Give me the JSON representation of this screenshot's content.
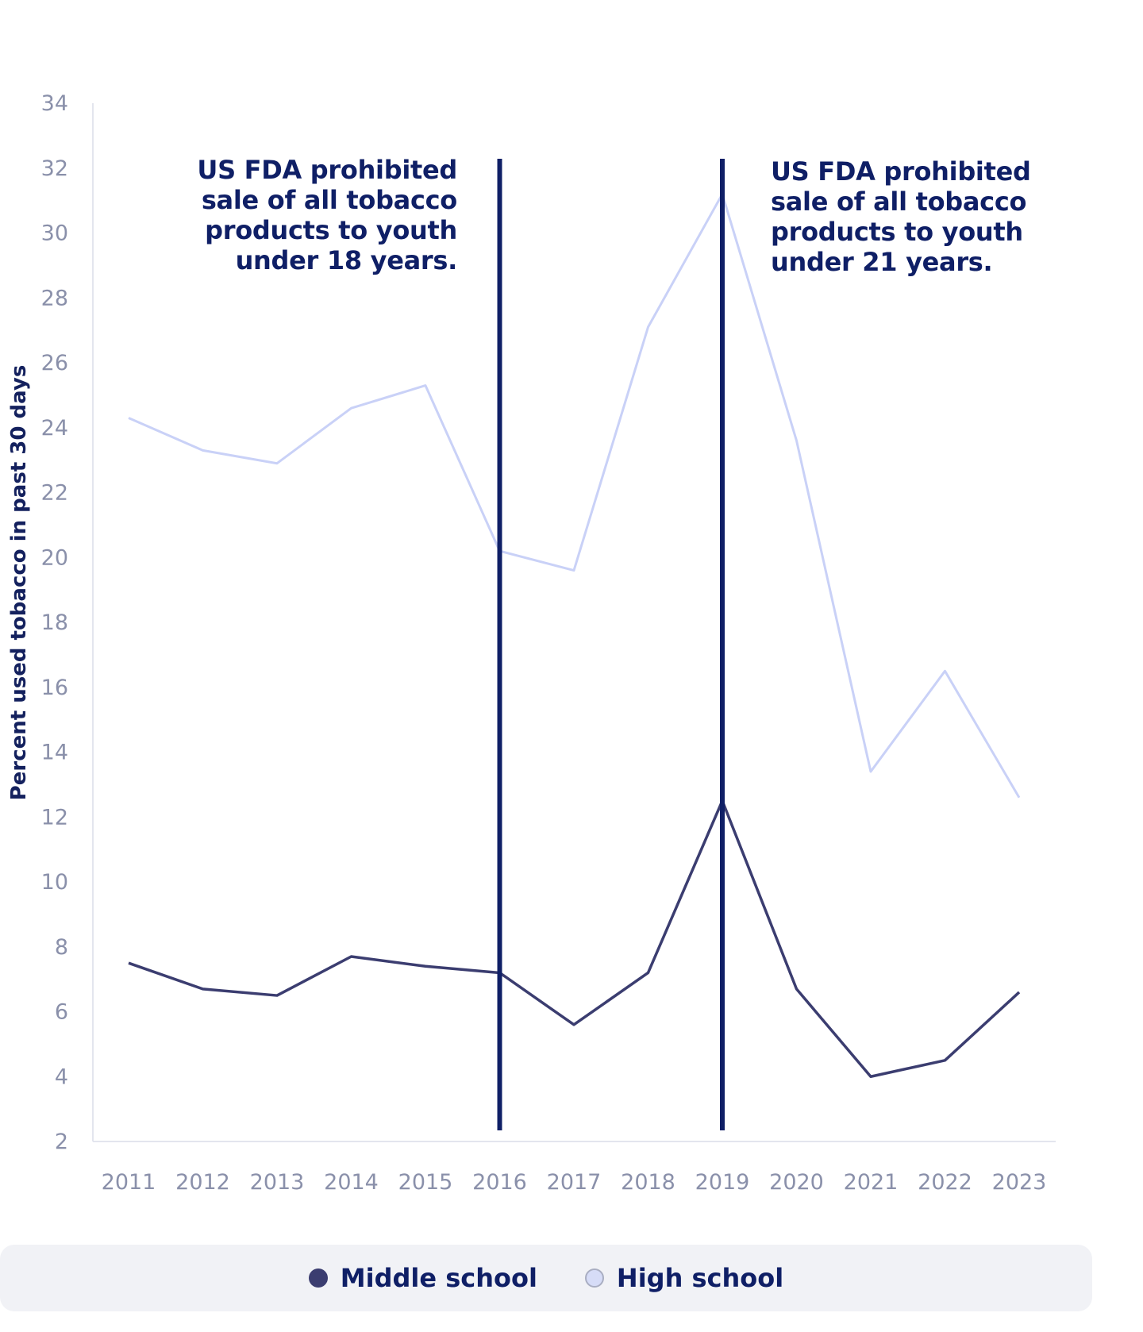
{
  "chart_data": {
    "type": "line",
    "title": "",
    "xlabel": "",
    "ylabel": "Percent used tobacco in past 30 days",
    "x": [
      "2011",
      "2012",
      "2013",
      "2014",
      "2015",
      "2016",
      "2017",
      "2018",
      "2019",
      "2020",
      "2021",
      "2022",
      "2023"
    ],
    "ylim": [
      2,
      34
    ],
    "yticks": [
      "2",
      "4",
      "6",
      "8",
      "10",
      "12",
      "14",
      "16",
      "18",
      "20",
      "22",
      "24",
      "26",
      "28",
      "30",
      "32",
      "34"
    ],
    "series": [
      {
        "name": "Middle school",
        "color": "#3b3d70",
        "values": [
          7.5,
          6.7,
          6.5,
          7.7,
          7.4,
          7.2,
          5.6,
          7.2,
          12.5,
          6.7,
          4.0,
          4.5,
          6.6
        ]
      },
      {
        "name": "High school",
        "color": "#c9d1f7",
        "values": [
          24.3,
          23.3,
          22.9,
          24.6,
          25.3,
          20.2,
          19.6,
          27.1,
          31.2,
          23.6,
          13.4,
          16.5,
          12.6
        ]
      }
    ],
    "annotations": [
      {
        "x": "2016",
        "text": "US FDA prohibited sale of all tobacco products to youth under 18 years.",
        "lines": [
          "US FDA prohibited",
          "sale of all tobacco",
          "products to youth",
          "under 18 years."
        ]
      },
      {
        "x": "2019",
        "text": "US FDA prohibited sale of all tobacco products to youth under 21 years.",
        "lines": [
          "US FDA prohibited",
          "sale of all tobacco",
          "products to youth",
          "under 21 years."
        ]
      }
    ],
    "marker_line_color": "#0f1f66",
    "grid": false,
    "legend_position": "bottom"
  }
}
